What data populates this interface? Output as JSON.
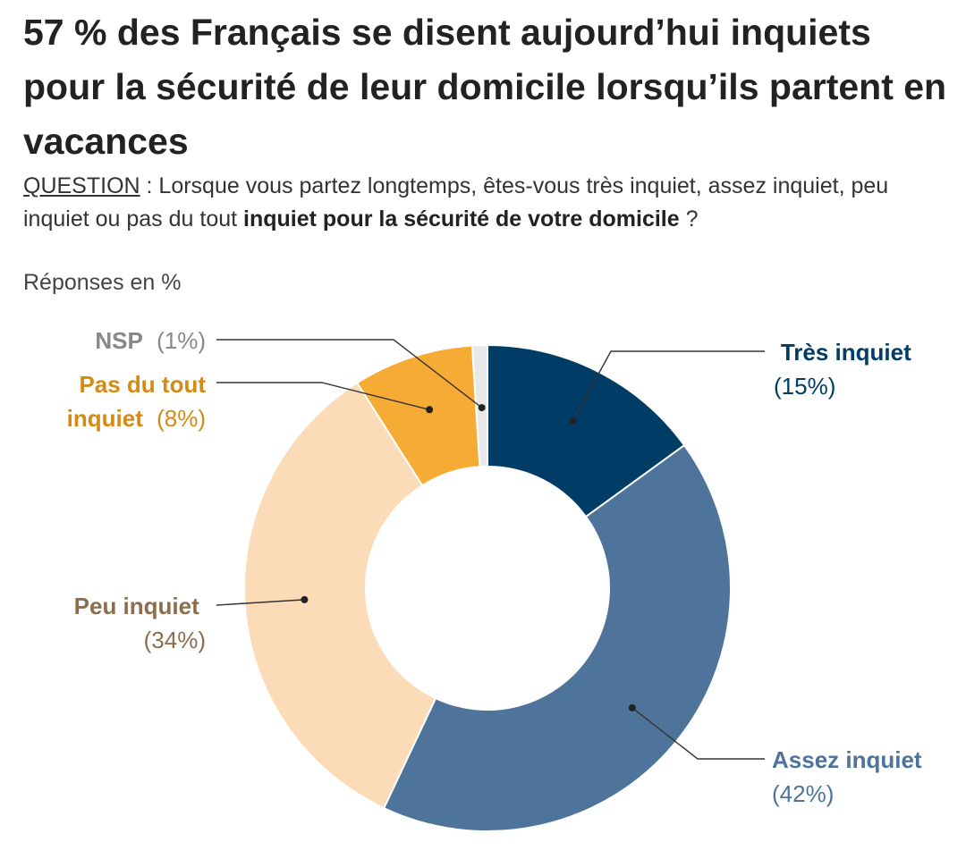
{
  "title": "57 % des Français se disent aujourd’hui inquiets pour la sécurité de leur domicile lorsqu’ils partent en vacances",
  "question": {
    "label": "QUESTION",
    "sep": " : ",
    "text": "Lorsque vous partez longtemps, êtes-vous très inquiet, assez inquiet, peu inquiet ou pas du tout ",
    "bold": "inquiet pour la sécurité de votre domicile",
    "end": " ?"
  },
  "unit_label": "Réponses en %",
  "colors": {
    "tres": "#003d66",
    "assez": "#4f749b",
    "peu": "#fcdcb8",
    "pasdutout": "#f6ab35",
    "nsp": "#e8e8e8",
    "tres_text": "#003d66",
    "assez_text": "#4f749b",
    "peu_text": "#8c6d4d",
    "pasdutout_text": "#d58a13",
    "nsp_text": "#888888"
  },
  "chart_data": {
    "type": "pie",
    "variant": "donut",
    "title": "57 % des Français se disent aujourd’hui inquiets pour la sécurité de leur domicile lorsqu’ils partent en vacances",
    "unit": "%",
    "slices": [
      {
        "key": "tres",
        "label": "Très inquiet",
        "value": 15,
        "value_text": "(15%)"
      },
      {
        "key": "assez",
        "label": "Assez inquiet",
        "value": 42,
        "value_text": "(42%)"
      },
      {
        "key": "peu",
        "label": "Peu inquiet",
        "value": 34,
        "value_text": "(34%)"
      },
      {
        "key": "pasdutout",
        "label": "Pas du tout inquiet",
        "label_line1": "Pas du tout",
        "label_line2": "inquiet",
        "value": 8,
        "value_text": "(8%)"
      },
      {
        "key": "nsp",
        "label": "NSP",
        "value": 1,
        "value_text": "(1%)"
      }
    ]
  }
}
